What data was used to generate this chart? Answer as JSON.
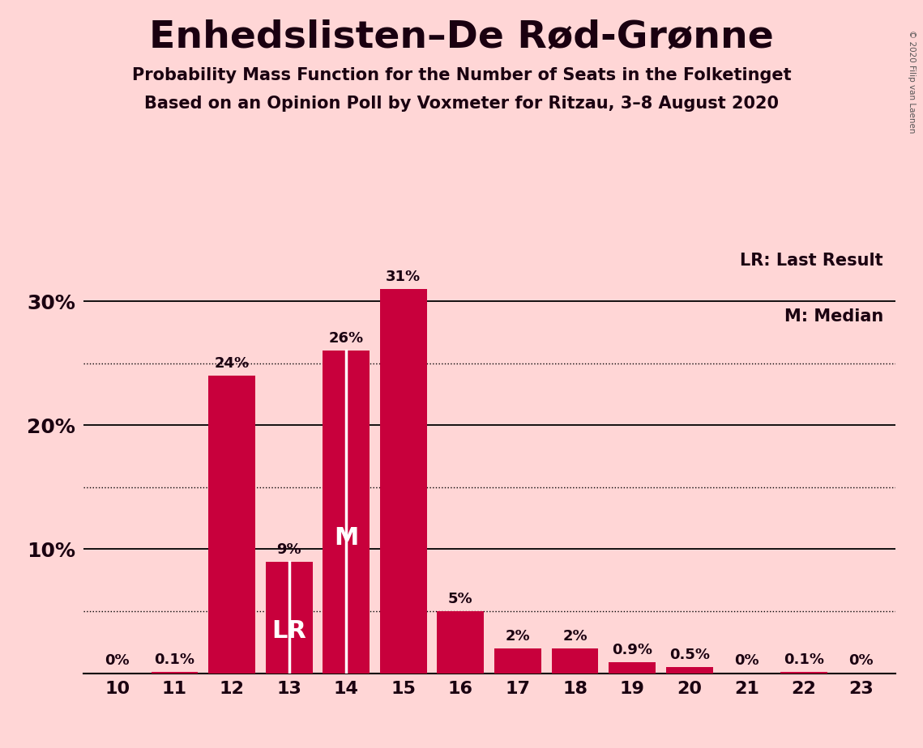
{
  "title": "Enhedslisten–De Rød-Grønne",
  "subtitle1": "Probability Mass Function for the Number of Seats in the Folketinget",
  "subtitle2": "Based on an Opinion Poll by Voxmeter for Ritzau, 3–8 August 2020",
  "copyright": "© 2020 Filip van Laenen",
  "seats": [
    10,
    11,
    12,
    13,
    14,
    15,
    16,
    17,
    18,
    19,
    20,
    21,
    22,
    23
  ],
  "probabilities": [
    0.0,
    0.1,
    24.0,
    9.0,
    26.0,
    31.0,
    5.0,
    2.0,
    2.0,
    0.9,
    0.5,
    0.0,
    0.1,
    0.0
  ],
  "labels": [
    "0%",
    "0.1%",
    "24%",
    "9%",
    "26%",
    "31%",
    "5%",
    "2%",
    "2%",
    "0.9%",
    "0.5%",
    "0%",
    "0.1%",
    "0%"
  ],
  "bar_color": "#C8003C",
  "background_color": "#FFD6D6",
  "text_color": "#1a0010",
  "title_color": "#1a0010",
  "lr_seat": 13,
  "median_seat": 14,
  "ylim_max": 35,
  "solid_yticks": [
    10,
    20,
    30
  ],
  "dotted_yticks": [
    5,
    15,
    25
  ],
  "legend_lr": "LR: Last Result",
  "legend_m": "M: Median",
  "white_line_seats": [
    13,
    14
  ]
}
